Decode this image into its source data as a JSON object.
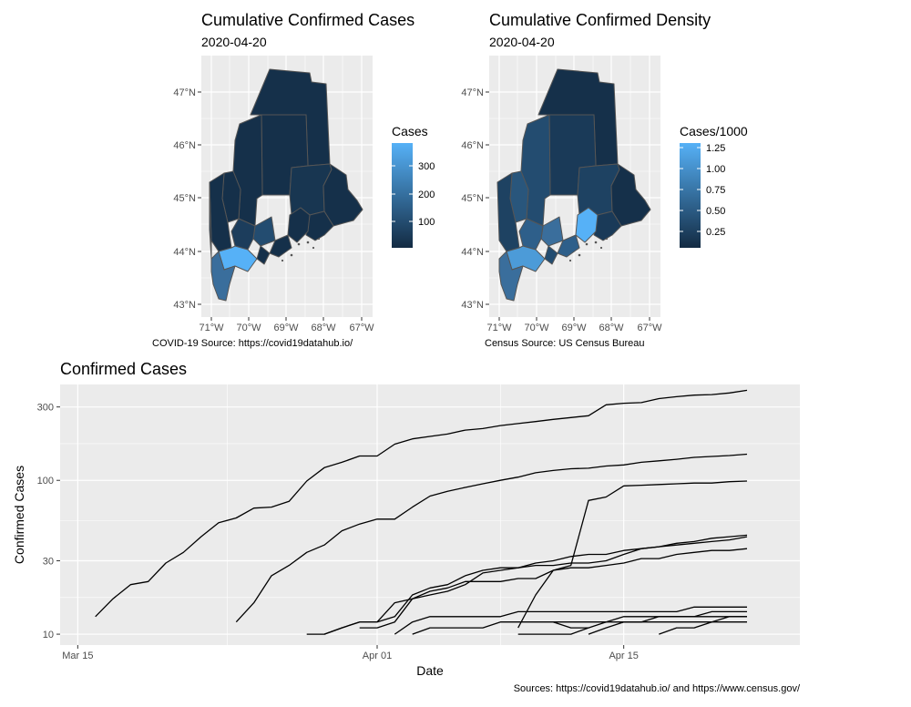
{
  "maps": [
    {
      "title": "Cumulative Confirmed Cases",
      "subtitle": "2020-04-20",
      "caption": "COVID-19 Source: https://covid19datahub.io/",
      "legend_title": "Cases",
      "legend_ticks": [
        "300",
        "200",
        "100"
      ],
      "legend_low": "#132B43",
      "legend_high": "#56B1F7"
    },
    {
      "title": "Cumulative Confirmed Density",
      "subtitle": "2020-04-20",
      "caption": "Census Source: US Census Bureau",
      "legend_title": "Cases/1000",
      "legend_ticks": [
        "1.25",
        "1.00",
        "0.75",
        "0.50",
        "0.25"
      ],
      "legend_low": "#132B43",
      "legend_high": "#56B1F7"
    }
  ],
  "map_axes": {
    "lat_ticks": [
      "47°N",
      "46°N",
      "45°N",
      "44°N",
      "43°N"
    ],
    "lon_ticks": [
      "71°W",
      "70°W",
      "69°W",
      "68°W",
      "67°W"
    ]
  },
  "chart_data": {
    "type": "line",
    "title": "Confirmed Cases",
    "xlabel": "Date",
    "ylabel": "Confirmed Cases",
    "caption": "Sources: https://covid19datahub.io/ and https://www.census.gov/",
    "y_scale": "log10",
    "ylim": [
      8.5,
      420
    ],
    "xlim": [
      "2020-03-14",
      "2020-04-25"
    ],
    "y_ticks": [
      10,
      30,
      100,
      300
    ],
    "x_ticks": [
      {
        "date": "2020-03-15",
        "label": "Mar 15"
      },
      {
        "date": "2020-04-01",
        "label": "Apr 01"
      },
      {
        "date": "2020-04-15",
        "label": "Apr 15"
      }
    ],
    "series": [
      {
        "x": [
          "2020-03-16",
          "2020-03-17",
          "2020-03-18",
          "2020-03-19",
          "2020-03-20",
          "2020-03-21",
          "2020-03-22",
          "2020-03-23",
          "2020-03-24",
          "2020-03-25",
          "2020-03-26",
          "2020-03-27",
          "2020-03-28",
          "2020-03-29",
          "2020-03-30",
          "2020-03-31",
          "2020-04-01",
          "2020-04-02",
          "2020-04-03",
          "2020-04-04",
          "2020-04-05",
          "2020-04-06",
          "2020-04-07",
          "2020-04-08",
          "2020-04-09",
          "2020-04-10",
          "2020-04-11",
          "2020-04-12",
          "2020-04-13",
          "2020-04-14",
          "2020-04-15",
          "2020-04-16",
          "2020-04-17",
          "2020-04-18",
          "2020-04-19",
          "2020-04-20",
          "2020-04-21",
          "2020-04-22"
        ],
        "y": [
          13,
          17,
          21,
          22,
          29,
          34,
          43,
          53,
          57,
          66,
          67,
          73,
          99,
          121,
          131,
          144,
          144,
          172,
          186,
          193,
          200,
          212,
          217,
          227,
          234,
          241,
          249,
          256,
          263,
          310,
          317,
          320,
          340,
          350,
          358,
          361,
          370,
          385
        ]
      },
      {
        "x": [
          "2020-03-24",
          "2020-03-25",
          "2020-03-26",
          "2020-03-27",
          "2020-03-28",
          "2020-03-29",
          "2020-03-30",
          "2020-03-31",
          "2020-04-01",
          "2020-04-02",
          "2020-04-03",
          "2020-04-04",
          "2020-04-05",
          "2020-04-06",
          "2020-04-07",
          "2020-04-08",
          "2020-04-09",
          "2020-04-10",
          "2020-04-11",
          "2020-04-12",
          "2020-04-13",
          "2020-04-14",
          "2020-04-15",
          "2020-04-16",
          "2020-04-17",
          "2020-04-18",
          "2020-04-19",
          "2020-04-20",
          "2020-04-21",
          "2020-04-22"
        ],
        "y": [
          12,
          16,
          24,
          28,
          34,
          38,
          47,
          52,
          56,
          56,
          67,
          79,
          85,
          90,
          95,
          100,
          105,
          112,
          116,
          119,
          120,
          124,
          126,
          131,
          134,
          137,
          141,
          143,
          145,
          148
        ]
      },
      {
        "x": [
          "2020-04-09",
          "2020-04-10",
          "2020-04-11",
          "2020-04-12",
          "2020-04-13",
          "2020-04-14",
          "2020-04-15",
          "2020-04-16",
          "2020-04-17",
          "2020-04-18",
          "2020-04-19",
          "2020-04-20",
          "2020-04-21",
          "2020-04-22"
        ],
        "y": [
          11,
          18,
          26,
          28,
          74,
          78,
          92,
          93,
          94,
          95,
          96,
          96,
          98,
          99
        ]
      },
      {
        "x": [
          "2020-03-29",
          "2020-03-30",
          "2020-03-31",
          "2020-04-01",
          "2020-04-02",
          "2020-04-03",
          "2020-04-04",
          "2020-04-05",
          "2020-04-06",
          "2020-04-07",
          "2020-04-08",
          "2020-04-09",
          "2020-04-10",
          "2020-04-11",
          "2020-04-12",
          "2020-04-13",
          "2020-04-14",
          "2020-04-15",
          "2020-04-16",
          "2020-04-17",
          "2020-04-18",
          "2020-04-19",
          "2020-04-20",
          "2020-04-21",
          "2020-04-22"
        ],
        "y": [
          10,
          11,
          12,
          12,
          13,
          18,
          20,
          21,
          24,
          26,
          27,
          27,
          29,
          30,
          32,
          33,
          33,
          35,
          36,
          37,
          39,
          40,
          42,
          43,
          44
        ]
      },
      {
        "x": [
          "2020-03-31",
          "2020-04-01",
          "2020-04-02",
          "2020-04-03",
          "2020-04-04",
          "2020-04-05",
          "2020-04-06",
          "2020-04-07",
          "2020-04-08",
          "2020-04-09",
          "2020-04-10",
          "2020-04-11",
          "2020-04-12",
          "2020-04-13",
          "2020-04-14",
          "2020-04-15",
          "2020-04-16",
          "2020-04-17",
          "2020-04-18",
          "2020-04-19",
          "2020-04-20",
          "2020-04-21",
          "2020-04-22"
        ],
        "y": [
          11,
          11,
          12,
          17,
          19,
          20,
          22,
          22,
          22,
          23,
          23,
          26,
          27,
          27,
          28,
          29,
          31,
          31,
          33,
          34,
          35,
          35,
          36
        ]
      },
      {
        "x": [
          "2020-04-01",
          "2020-04-02",
          "2020-04-03",
          "2020-04-04",
          "2020-04-05",
          "2020-04-06",
          "2020-04-07",
          "2020-04-08",
          "2020-04-09",
          "2020-04-10",
          "2020-04-11",
          "2020-04-12",
          "2020-04-13",
          "2020-04-14",
          "2020-04-15",
          "2020-04-16",
          "2020-04-17",
          "2020-04-18",
          "2020-04-19",
          "2020-04-20",
          "2020-04-21",
          "2020-04-22"
        ],
        "y": [
          12,
          16,
          17,
          18,
          19,
          21,
          25,
          26,
          27,
          28,
          28,
          29,
          29,
          30,
          33,
          36,
          37,
          38,
          39,
          40,
          41,
          43
        ]
      },
      {
        "x": [
          "2020-04-02",
          "2020-04-03",
          "2020-04-04",
          "2020-04-05",
          "2020-04-06",
          "2020-04-07",
          "2020-04-08",
          "2020-04-09",
          "2020-04-10",
          "2020-04-11",
          "2020-04-12",
          "2020-04-13",
          "2020-04-14",
          "2020-04-15",
          "2020-04-16",
          "2020-04-17",
          "2020-04-18",
          "2020-04-19",
          "2020-04-20",
          "2020-04-21",
          "2020-04-22"
        ],
        "y": [
          10,
          12,
          13,
          13,
          13,
          13,
          13,
          14,
          14,
          14,
          14,
          14,
          14,
          14,
          14,
          14,
          14,
          15,
          15,
          15,
          15
        ]
      },
      {
        "x": [
          "2020-04-03",
          "2020-04-04",
          "2020-04-05",
          "2020-04-06",
          "2020-04-07",
          "2020-04-08",
          "2020-04-09",
          "2020-04-10",
          "2020-04-11",
          "2020-04-12",
          "2020-04-13",
          "2020-04-14",
          "2020-04-15",
          "2020-04-16",
          "2020-04-17",
          "2020-04-18",
          "2020-04-19",
          "2020-04-20",
          "2020-04-21",
          "2020-04-22"
        ],
        "y": [
          10,
          11,
          11,
          11,
          11,
          12,
          12,
          12,
          12,
          12,
          12,
          12,
          13,
          13,
          13,
          13,
          13,
          13,
          13,
          13
        ]
      },
      {
        "x": [
          "2020-03-28",
          "2020-03-29",
          "2020-03-30",
          "2020-03-31"
        ],
        "y": [
          10,
          10,
          11,
          12
        ]
      },
      {
        "x": [
          "2020-04-09",
          "2020-04-10",
          "2020-04-11",
          "2020-04-12",
          "2020-04-13"
        ],
        "y": [
          10,
          10,
          10,
          10,
          11
        ]
      },
      {
        "x": [
          "2020-04-11",
          "2020-04-12",
          "2020-04-13",
          "2020-04-14",
          "2020-04-15",
          "2020-04-16",
          "2020-04-17",
          "2020-04-18",
          "2020-04-19",
          "2020-04-20",
          "2020-04-21",
          "2020-04-22"
        ],
        "y": [
          12,
          11,
          11,
          12,
          12,
          12,
          12,
          12,
          12,
          12,
          12,
          12
        ]
      },
      {
        "x": [
          "2020-04-13",
          "2020-04-14",
          "2020-04-15",
          "2020-04-16",
          "2020-04-17",
          "2020-04-18",
          "2020-04-19",
          "2020-04-20",
          "2020-04-21",
          "2020-04-22"
        ],
        "y": [
          10,
          11,
          12,
          12,
          13,
          13,
          13,
          14,
          14,
          14
        ]
      },
      {
        "x": [
          "2020-04-17",
          "2020-04-18",
          "2020-04-19",
          "2020-04-20",
          "2020-04-21",
          "2020-04-22"
        ],
        "y": [
          10,
          11,
          11,
          12,
          13,
          13
        ]
      }
    ]
  }
}
